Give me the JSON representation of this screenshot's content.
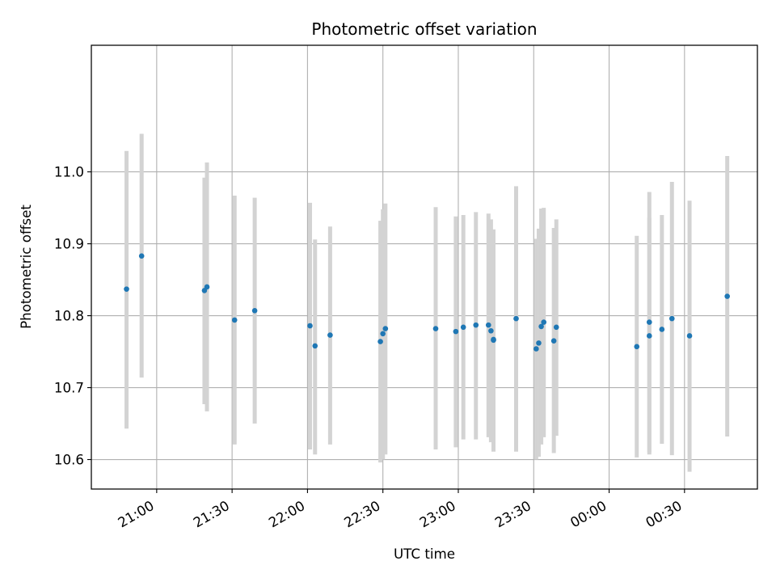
{
  "chart_data": {
    "type": "scatter",
    "title": "Photometric offset variation",
    "xlabel": "UTC time",
    "ylabel": "Photometric offset",
    "x_axis": {
      "kind": "time",
      "range_minutes": [
        -26,
        239
      ],
      "ticks": [
        {
          "label": "21:00",
          "minutes": 0
        },
        {
          "label": "21:30",
          "minutes": 30
        },
        {
          "label": "22:00",
          "minutes": 60
        },
        {
          "label": "22:30",
          "minutes": 90
        },
        {
          "label": "23:00",
          "minutes": 120
        },
        {
          "label": "23:30",
          "minutes": 150
        },
        {
          "label": "00:00",
          "minutes": 180
        },
        {
          "label": "00:30",
          "minutes": 210
        }
      ]
    },
    "y_axis": {
      "range": [
        10.559,
        11.176
      ],
      "ticks": [
        10.6,
        10.7,
        10.8,
        10.9,
        11.0
      ]
    },
    "grid": true,
    "colors": {
      "marker": "#1f77b4",
      "errorbar": "#d3d3d3",
      "grid": "#b0b0b0",
      "axes": "#000000"
    },
    "points": [
      {
        "t": "20:48",
        "y": 10.837,
        "lo": 10.643,
        "hi": 11.029
      },
      {
        "t": "20:54",
        "y": 10.883,
        "lo": 10.714,
        "hi": 11.053
      },
      {
        "t": "21:19",
        "y": 10.835,
        "lo": 10.677,
        "hi": 10.992
      },
      {
        "t": "21:20",
        "y": 10.84,
        "lo": 10.667,
        "hi": 11.013
      },
      {
        "t": "21:31",
        "y": 10.794,
        "lo": 10.621,
        "hi": 10.967
      },
      {
        "t": "21:39",
        "y": 10.807,
        "lo": 10.65,
        "hi": 10.964
      },
      {
        "t": "22:01",
        "y": 10.786,
        "lo": 10.614,
        "hi": 10.957
      },
      {
        "t": "22:03",
        "y": 10.758,
        "lo": 10.607,
        "hi": 10.906
      },
      {
        "t": "22:09",
        "y": 10.773,
        "lo": 10.621,
        "hi": 10.924
      },
      {
        "t": "22:29",
        "y": 10.764,
        "lo": 10.596,
        "hi": 10.932
      },
      {
        "t": "22:30",
        "y": 10.775,
        "lo": 10.6,
        "hi": 10.948
      },
      {
        "t": "22:31",
        "y": 10.782,
        "lo": 10.607,
        "hi": 10.956
      },
      {
        "t": "22:51",
        "y": 10.782,
        "lo": 10.614,
        "hi": 10.951
      },
      {
        "t": "22:59",
        "y": 10.778,
        "lo": 10.617,
        "hi": 10.938
      },
      {
        "t": "23:02",
        "y": 10.784,
        "lo": 10.628,
        "hi": 10.94
      },
      {
        "t": "23:07",
        "y": 10.787,
        "lo": 10.628,
        "hi": 10.944
      },
      {
        "t": "23:12",
        "y": 10.787,
        "lo": 10.631,
        "hi": 10.942
      },
      {
        "t": "23:13",
        "y": 10.779,
        "lo": 10.624,
        "hi": 10.934
      },
      {
        "t": "23:14",
        "y": 10.767,
        "lo": 10.611,
        "hi": 10.92
      },
      {
        "t": "23:14",
        "y": 10.766,
        "lo": 10.614,
        "hi": 10.918
      },
      {
        "t": "23:23",
        "y": 10.796,
        "lo": 10.611,
        "hi": 10.98
      },
      {
        "t": "23:31",
        "y": 10.754,
        "lo": 10.6,
        "hi": 10.907
      },
      {
        "t": "23:32",
        "y": 10.762,
        "lo": 10.604,
        "hi": 10.921
      },
      {
        "t": "23:33",
        "y": 10.785,
        "lo": 10.621,
        "hi": 10.949
      },
      {
        "t": "23:34",
        "y": 10.791,
        "lo": 10.631,
        "hi": 10.95
      },
      {
        "t": "23:38",
        "y": 10.765,
        "lo": 10.609,
        "hi": 10.922
      },
      {
        "t": "23:39",
        "y": 10.784,
        "lo": 10.633,
        "hi": 10.934
      },
      {
        "t": "00:11",
        "y": 10.757,
        "lo": 10.603,
        "hi": 10.911
      },
      {
        "t": "00:16",
        "y": 10.791,
        "lo": 10.61,
        "hi": 10.972
      },
      {
        "t": "00:16",
        "y": 10.772,
        "lo": 10.607,
        "hi": 10.936
      },
      {
        "t": "00:21",
        "y": 10.781,
        "lo": 10.622,
        "hi": 10.94
      },
      {
        "t": "00:25",
        "y": 10.796,
        "lo": 10.606,
        "hi": 10.986
      },
      {
        "t": "00:32",
        "y": 10.772,
        "lo": 10.583,
        "hi": 10.96
      },
      {
        "t": "00:47",
        "y": 10.827,
        "lo": 10.632,
        "hi": 11.022
      }
    ]
  }
}
